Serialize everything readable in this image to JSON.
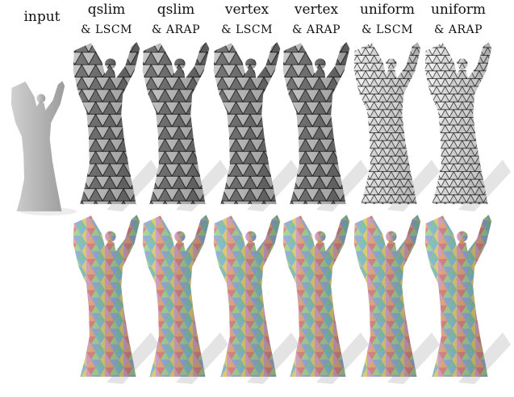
{
  "columns": [
    {
      "line1": "input"
    },
    {
      "line1": "qslim",
      "line2": "& LSCM"
    },
    {
      "line1": "qslim",
      "line2": "& ARAP"
    },
    {
      "line1": "vertex",
      "line2": "& LSCM"
    },
    {
      "line1": "vertex",
      "line2": "& ARAP"
    },
    {
      "line1": "uniform",
      "line2": "& LSCM"
    },
    {
      "line1": "uniform",
      "line2": "& ARAP"
    }
  ]
}
